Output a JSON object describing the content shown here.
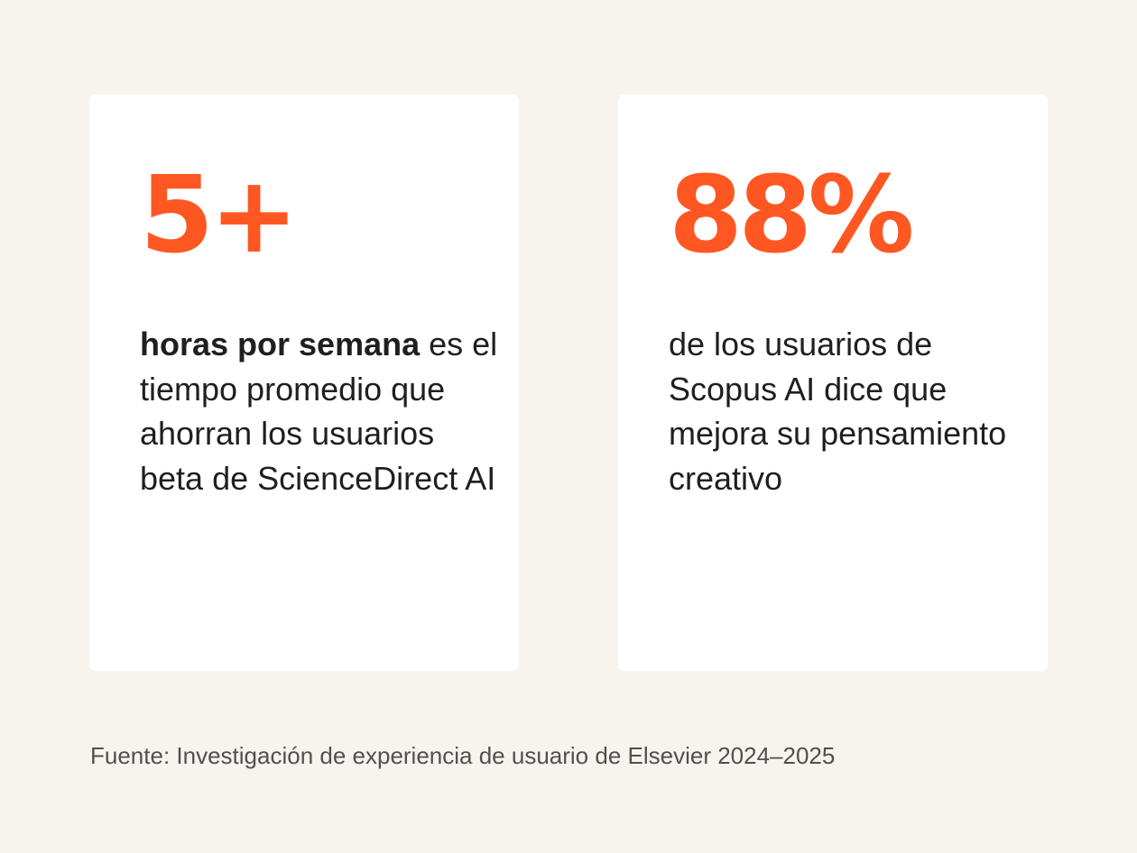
{
  "cards": [
    {
      "stat": "5+",
      "description_bold": "horas por semana",
      "description_rest": " es el tiempo promedio que ahorran los usuarios beta de ScienceDirect AI"
    },
    {
      "stat": "88%",
      "description_bold": "",
      "description_rest": "de los usuarios de Scopus AI dice que mejora su pensamiento creativo"
    }
  ],
  "source": "Fuente: Investigación de experiencia de usuario de Elsevier 2024–2025",
  "colors": {
    "background": "#f7f4ee",
    "card": "#ffffff",
    "accent": "#ff5722",
    "text": "#1f1f1f",
    "source_text": "#505050"
  }
}
